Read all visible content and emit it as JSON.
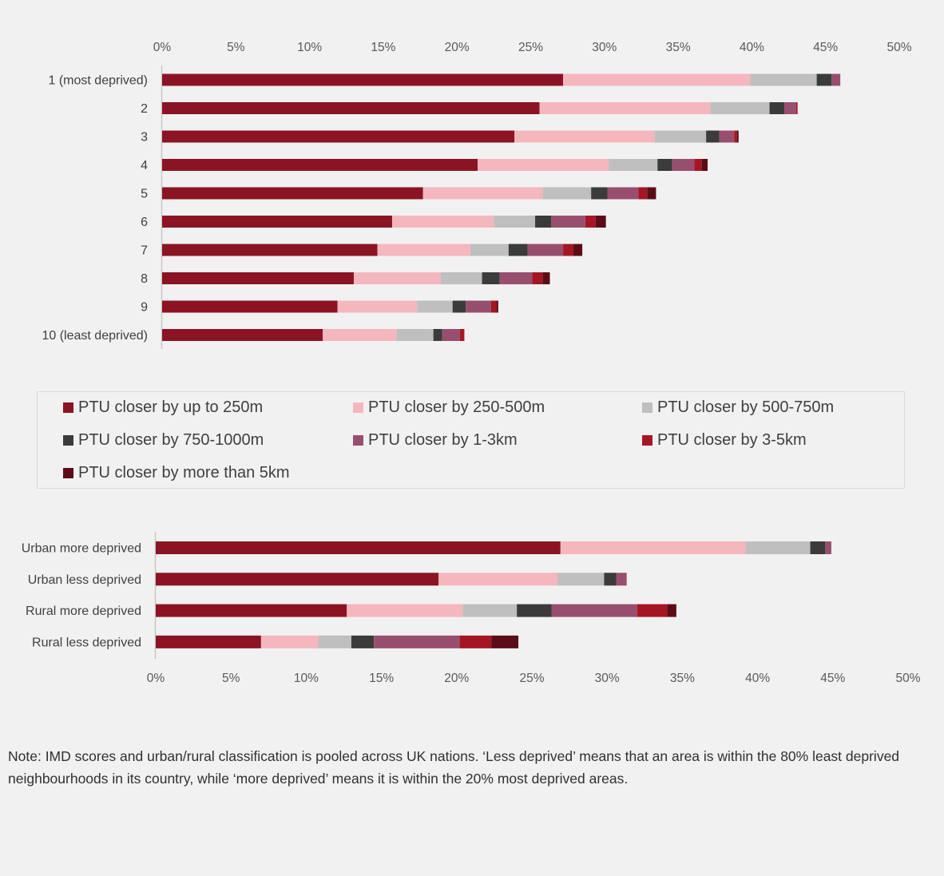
{
  "chart_data": [
    {
      "type": "bar",
      "orientation": "horizontal",
      "stacked": true,
      "categories": [
        "1 (most deprived)",
        "2",
        "3",
        "4",
        "5",
        "6",
        "7",
        "8",
        "9",
        "10 (least deprived)"
      ],
      "series": [
        {
          "name": "PTU closer by up to 250m",
          "color": "#8b1424",
          "values": [
            27.2,
            25.6,
            23.9,
            21.4,
            17.7,
            15.6,
            14.6,
            13.0,
            11.9,
            10.9
          ]
        },
        {
          "name": "PTU closer by 250-500m",
          "color": "#f5b7be",
          "values": [
            12.7,
            11.6,
            9.5,
            8.9,
            8.1,
            6.9,
            6.3,
            5.9,
            5.4,
            5.0
          ]
        },
        {
          "name": "PTU closer by 500-750m",
          "color": "#bfbfbf",
          "values": [
            4.5,
            4.0,
            3.5,
            3.3,
            3.3,
            2.8,
            2.6,
            2.8,
            2.4,
            2.5
          ]
        },
        {
          "name": "PTU closer by 750-1000m",
          "color": "#3b3b3b",
          "values": [
            1.0,
            1.0,
            0.9,
            1.0,
            1.1,
            1.1,
            1.3,
            1.2,
            0.9,
            0.6
          ]
        },
        {
          "name": "PTU closer by 1-3km",
          "color": "#984f6f",
          "values": [
            0.6,
            0.8,
            1.0,
            1.5,
            2.1,
            2.3,
            2.4,
            2.2,
            1.7,
            1.2
          ]
        },
        {
          "name": "PTU closer by 3-5km",
          "color": "#a51625",
          "values": [
            0.0,
            0.1,
            0.2,
            0.5,
            0.6,
            0.7,
            0.7,
            0.7,
            0.4,
            0.3
          ]
        },
        {
          "name": "PTU closer by more than 5km",
          "color": "#5b0d17",
          "values": [
            0.0,
            0.0,
            0.1,
            0.4,
            0.6,
            0.7,
            0.6,
            0.5,
            0.1,
            0.0
          ]
        }
      ],
      "xlim": [
        0,
        50
      ],
      "xticks": [
        "0%",
        "5%",
        "10%",
        "15%",
        "20%",
        "25%",
        "30%",
        "35%",
        "40%",
        "45%",
        "50%"
      ],
      "xaxis_position": "top",
      "grid": false
    },
    {
      "type": "bar",
      "orientation": "horizontal",
      "stacked": true,
      "categories": [
        "Urban more deprived",
        "Urban less deprived",
        "Rural more deprived",
        "Rural less deprived"
      ],
      "series": [
        {
          "name": "PTU closer by up to 250m",
          "color": "#8b1424",
          "values": [
            26.9,
            18.8,
            12.7,
            7.0
          ]
        },
        {
          "name": "PTU closer by 250-500m",
          "color": "#f5b7be",
          "values": [
            12.3,
            7.9,
            7.7,
            3.8
          ]
        },
        {
          "name": "PTU closer by 500-750m",
          "color": "#bfbfbf",
          "values": [
            4.3,
            3.1,
            3.6,
            2.2
          ]
        },
        {
          "name": "PTU closer by 750-1000m",
          "color": "#3b3b3b",
          "values": [
            1.0,
            0.8,
            2.3,
            1.5
          ]
        },
        {
          "name": "PTU closer by 1-3km",
          "color": "#984f6f",
          "values": [
            0.4,
            0.7,
            5.7,
            5.7
          ]
        },
        {
          "name": "PTU closer by 3-5km",
          "color": "#a51625",
          "values": [
            0.0,
            0.0,
            2.0,
            2.1
          ]
        },
        {
          "name": "PTU closer by more than 5km",
          "color": "#5b0d17",
          "values": [
            0.0,
            0.0,
            0.6,
            1.8
          ]
        }
      ],
      "xlim": [
        0,
        50
      ],
      "xticks": [
        "0%",
        "5%",
        "10%",
        "15%",
        "20%",
        "25%",
        "30%",
        "35%",
        "40%",
        "45%",
        "50%"
      ],
      "xaxis_position": "bottom",
      "grid": false
    }
  ],
  "legend": {
    "placement": "between charts",
    "items": [
      {
        "label": "PTU closer by up to 250m",
        "color": "#8b1424"
      },
      {
        "label": "PTU closer by 250-500m",
        "color": "#f5b7be"
      },
      {
        "label": "PTU closer by 500-750m",
        "color": "#bfbfbf"
      },
      {
        "label": "PTU closer by 750-1000m",
        "color": "#3b3b3b"
      },
      {
        "label": "PTU closer by 1-3km",
        "color": "#984f6f"
      },
      {
        "label": "PTU closer by 3-5km",
        "color": "#a51625"
      },
      {
        "label": "PTU closer by more than 5km",
        "color": "#5b0d17"
      }
    ]
  },
  "note": "Note: IMD scores and urban/rural classification is pooled across UK nations. ‘Less deprived’ means that an area is within the 80% least deprived neighbourhoods in its country, while ‘more deprived’ means it is within the 20% most deprived areas."
}
